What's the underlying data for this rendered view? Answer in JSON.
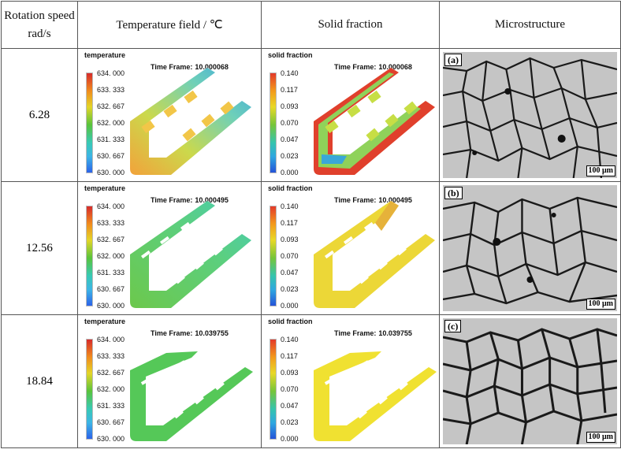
{
  "header": {
    "col1": "Rotation speed rad/s",
    "col1_a": "Rotation speed",
    "col1_b": "rad/s",
    "col2": "Temperature field / ℃",
    "col3": "Solid fraction",
    "col4": "Microstructure"
  },
  "colorbars": {
    "temperature": {
      "label": "temperature",
      "ticks": [
        "634. 000",
        "633. 333",
        "632. 667",
        "632. 000",
        "631. 333",
        "630. 667",
        "630. 000"
      ]
    },
    "solid_fraction": {
      "label": "solid fraction",
      "ticks": [
        "0.140",
        "0.117",
        "0.093",
        "0.070",
        "0.047",
        "0.023",
        "0.000"
      ]
    }
  },
  "time_frame_label": "Time Frame:",
  "rows": [
    {
      "speed": "6.28",
      "temp_time": "10.000068",
      "sf_time": "10.000068",
      "label": "(a)",
      "scale": "100 μm"
    },
    {
      "speed": "12.56",
      "temp_time": "10.000495",
      "sf_time": "10.000495",
      "label": "(b)",
      "scale": "100 μm"
    },
    {
      "speed": "18.84",
      "temp_time": "10.039755",
      "sf_time": "10.039755",
      "label": "(c)",
      "scale": "100 μm"
    }
  ],
  "colors": {
    "row1_temp_fill": "#6fd1a0",
    "row1_temp_accent": "#ef9a2a",
    "row1_sf_fill": "#8fd25a",
    "row1_sf_accent": "#e0402c",
    "row2_temp_fill": "#67cf58",
    "row2_sf_fill": "#ecd737",
    "row3_temp_fill": "#55c858",
    "row3_sf_fill": "#f0e131"
  }
}
